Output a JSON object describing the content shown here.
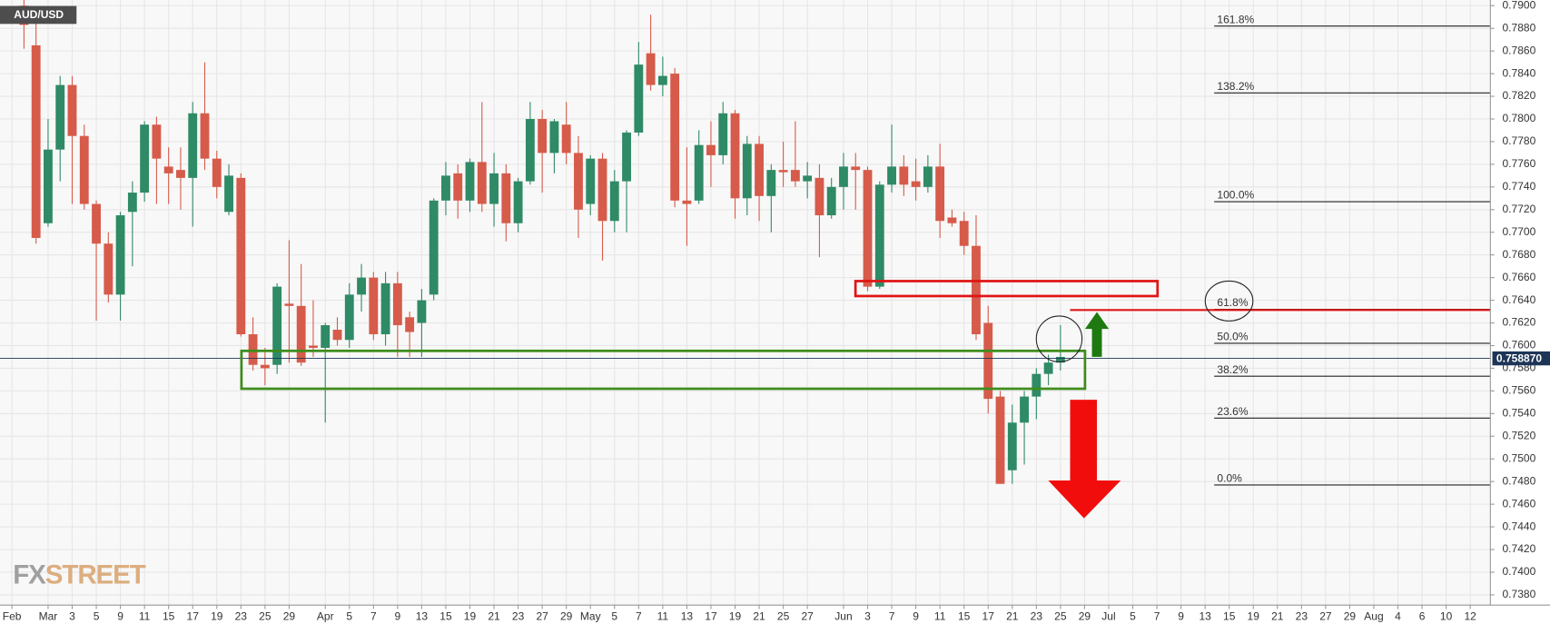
{
  "chart_data": {
    "type": "candlestick",
    "title": "AUD/USD",
    "watermark": [
      "FX",
      "STREET"
    ],
    "up_color": "#2f8a66",
    "down_color": "#d65b4a",
    "grid": true,
    "categories": [
      "Feb",
      null,
      null,
      "Mar",
      null,
      "3",
      null,
      "5",
      null,
      "9",
      null,
      "11",
      null,
      "15",
      null,
      "17",
      null,
      "19",
      null,
      "23",
      null,
      "25",
      null,
      "29",
      null,
      null,
      "Apr",
      null,
      "5",
      null,
      "7",
      null,
      "9",
      null,
      "13",
      null,
      "15",
      null,
      "19",
      null,
      "21",
      null,
      "23",
      null,
      "27",
      null,
      "29",
      null,
      "May",
      null,
      "5",
      null,
      "7",
      null,
      "11",
      null,
      "13",
      null,
      "17",
      null,
      "19",
      null,
      "21",
      null,
      "25",
      null,
      "27",
      null,
      null,
      "Jun",
      null,
      "3",
      null,
      "7",
      null,
      "9",
      null,
      "11",
      null,
      "15",
      null,
      "17",
      null,
      "21",
      null,
      "23",
      null,
      "25",
      null,
      "29",
      null,
      "Jul",
      null,
      "5",
      null,
      "7",
      null,
      "9",
      null,
      "13",
      null,
      "15",
      null,
      "19",
      null,
      "21",
      null,
      "23",
      null,
      "27",
      null,
      "29",
      null,
      "Aug",
      null,
      "4",
      null,
      "6",
      null,
      "10",
      null,
      "12"
    ],
    "open": [
      null,
      0.79,
      0.7865,
      0.7708,
      0.7773,
      0.783,
      0.7785,
      0.7725,
      0.769,
      0.7645,
      0.7718,
      0.7735,
      0.7795,
      0.7758,
      0.7755,
      0.7748,
      0.7805,
      0.7765,
      0.7718,
      0.7748,
      0.761,
      0.7583,
      0.7583,
      0.7637,
      0.7635,
      0.76,
      0.7598,
      0.7614,
      0.7605,
      0.7645,
      0.766,
      0.761,
      0.7655,
      0.7625,
      0.762,
      0.7645,
      0.7728,
      0.7752,
      0.7728,
      0.7762,
      0.7725,
      0.7752,
      0.7708,
      0.7745,
      0.78,
      0.777,
      0.7795,
      0.777,
      0.7725,
      0.7765,
      0.771,
      0.7745,
      0.7788,
      0.7858,
      0.783,
      0.784,
      0.7728,
      0.7728,
      0.7777,
      0.7768,
      0.7805,
      0.773,
      0.7778,
      0.7732,
      0.7755,
      0.7755,
      0.7745,
      0.7748,
      0.7715,
      0.774,
      0.7758,
      0.7755,
      0.7652,
      0.7742,
      0.7758,
      0.7745,
      0.774,
      0.7758,
      0.7713,
      0.771,
      0.7688,
      0.762,
      0.7555,
      0.749,
      0.7532,
      0.7555,
      0.7575,
      0.7585,
      null,
      null,
      null,
      null,
      null,
      null,
      null,
      null,
      null,
      null,
      null,
      null,
      null,
      null,
      null,
      null,
      null,
      null,
      null,
      null,
      null,
      null,
      null,
      null,
      null,
      null,
      null,
      null,
      null,
      null,
      null,
      null,
      null,
      null
    ],
    "high": [
      null,
      0.7905,
      0.7885,
      0.78,
      0.7838,
      0.7838,
      0.7795,
      0.7728,
      0.77,
      0.7718,
      0.7745,
      0.7798,
      0.7802,
      0.7775,
      0.7775,
      0.7815,
      0.785,
      0.7772,
      0.776,
      0.7752,
      0.7625,
      0.7598,
      0.7655,
      0.7693,
      0.7672,
      0.764,
      0.762,
      0.7625,
      0.7655,
      0.7672,
      0.7665,
      0.7665,
      0.7665,
      0.763,
      0.765,
      0.773,
      0.7762,
      0.776,
      0.7765,
      0.7815,
      0.777,
      0.776,
      0.7748,
      0.7815,
      0.7808,
      0.78,
      0.7815,
      0.7785,
      0.7768,
      0.777,
      0.7755,
      0.779,
      0.7868,
      0.7892,
      0.7855,
      0.7845,
      0.7775,
      0.779,
      0.7798,
      0.7815,
      0.7808,
      0.7785,
      0.7785,
      0.776,
      0.778,
      0.7798,
      0.7762,
      0.776,
      0.7748,
      0.777,
      0.777,
      0.7758,
      0.7745,
      0.7795,
      0.7768,
      0.7765,
      0.7768,
      0.7778,
      0.772,
      0.7718,
      0.7715,
      0.7635,
      0.756,
      0.7548,
      0.756,
      0.758,
      0.7592,
      0.7618,
      null,
      null,
      null,
      null,
      null,
      null,
      null,
      null,
      null,
      null,
      null,
      null,
      null,
      null,
      null,
      null,
      null,
      null,
      null,
      null,
      null,
      null,
      null,
      null,
      null,
      null,
      null,
      null,
      null,
      null,
      null,
      null,
      null,
      null
    ],
    "low": [
      null,
      0.7862,
      0.769,
      0.7705,
      0.7745,
      0.7725,
      0.772,
      0.7622,
      0.7638,
      0.7622,
      0.767,
      0.7727,
      0.7725,
      0.7725,
      0.772,
      0.7705,
      0.7755,
      0.773,
      0.7715,
      0.7608,
      0.7578,
      0.7565,
      0.7575,
      0.7585,
      0.7582,
      0.759,
      0.7532,
      0.76,
      0.7598,
      0.763,
      0.7605,
      0.76,
      0.759,
      0.759,
      0.759,
      0.764,
      0.7715,
      0.7712,
      0.7718,
      0.7718,
      0.7705,
      0.7692,
      0.77,
      0.7742,
      0.7735,
      0.7752,
      0.776,
      0.7695,
      0.7715,
      0.7675,
      0.77,
      0.77,
      0.7785,
      0.7825,
      0.782,
      0.7722,
      0.7688,
      0.7725,
      0.774,
      0.776,
      0.7712,
      0.7715,
      0.771,
      0.77,
      0.774,
      0.774,
      0.773,
      0.7678,
      0.7712,
      0.772,
      0.772,
      0.7648,
      0.765,
      0.7735,
      0.7732,
      0.7728,
      0.7735,
      0.7695,
      0.7705,
      0.768,
      0.7605,
      0.754,
      0.7478,
      0.7478,
      0.7495,
      0.7535,
      0.7565,
      0.7578,
      null,
      null,
      null,
      null,
      null,
      null,
      null,
      null,
      null,
      null,
      null,
      null,
      null,
      null,
      null,
      null,
      null,
      null,
      null,
      null,
      null,
      null,
      null,
      null,
      null,
      null,
      null,
      null,
      null,
      null,
      null,
      null,
      null,
      null
    ],
    "close": [
      null,
      0.7883,
      0.7695,
      0.7773,
      0.783,
      0.7785,
      0.7725,
      0.769,
      0.7645,
      0.7715,
      0.7735,
      0.7795,
      0.7765,
      0.7752,
      0.7748,
      0.7805,
      0.7765,
      0.774,
      0.775,
      0.761,
      0.7583,
      0.758,
      0.7652,
      0.7635,
      0.7585,
      0.7598,
      0.7618,
      0.7605,
      0.7645,
      0.766,
      0.761,
      0.7655,
      0.7618,
      0.7612,
      0.764,
      0.7728,
      0.775,
      0.7728,
      0.7762,
      0.7725,
      0.7752,
      0.7708,
      0.7745,
      0.78,
      0.777,
      0.7798,
      0.777,
      0.772,
      0.7765,
      0.771,
      0.7745,
      0.7788,
      0.7848,
      0.783,
      0.7838,
      0.7728,
      0.7725,
      0.7777,
      0.7768,
      0.7805,
      0.773,
      0.7778,
      0.7732,
      0.7755,
      0.7753,
      0.7745,
      0.775,
      0.7715,
      0.774,
      0.7758,
      0.7755,
      0.7652,
      0.7742,
      0.7758,
      0.7742,
      0.774,
      0.7758,
      0.771,
      0.7708,
      0.7688,
      0.761,
      0.7553,
      0.7478,
      0.7532,
      0.7555,
      0.7575,
      0.7585,
      0.759,
      null,
      null,
      null,
      null,
      null,
      null,
      null,
      null,
      null,
      null,
      null,
      null,
      null,
      null,
      null,
      null,
      null,
      null,
      null,
      null,
      null,
      null,
      null,
      null,
      null,
      null,
      null,
      null,
      null,
      null,
      null,
      null,
      null,
      null
    ],
    "ylim": [
      0.7371,
      0.7905
    ],
    "yticks": [
      {
        "value": 0.738,
        "label": "0.7380"
      },
      {
        "value": 0.74,
        "label": "0.7400"
      },
      {
        "value": 0.742,
        "label": "0.7420"
      },
      {
        "value": 0.744,
        "label": "0.7440"
      },
      {
        "value": 0.746,
        "label": "0.7460"
      },
      {
        "value": 0.748,
        "label": "0.7480"
      },
      {
        "value": 0.75,
        "label": "0.7500"
      },
      {
        "value": 0.752,
        "label": "0.7520"
      },
      {
        "value": 0.754,
        "label": "0.7540"
      },
      {
        "value": 0.756,
        "label": "0.7560"
      },
      {
        "value": 0.758,
        "label": "0.7580"
      },
      {
        "value": 0.76,
        "label": "0.7600"
      },
      {
        "value": 0.762,
        "label": "0.7620"
      },
      {
        "value": 0.764,
        "label": "0.7640"
      },
      {
        "value": 0.766,
        "label": "0.7660"
      },
      {
        "value": 0.768,
        "label": "0.7680"
      },
      {
        "value": 0.77,
        "label": "0.7700"
      },
      {
        "value": 0.772,
        "label": "0.7720"
      },
      {
        "value": 0.774,
        "label": "0.7740"
      },
      {
        "value": 0.776,
        "label": "0.7760"
      },
      {
        "value": 0.778,
        "label": "0.7780"
      },
      {
        "value": 0.78,
        "label": "0.7800"
      },
      {
        "value": 0.782,
        "label": "0.7820"
      },
      {
        "value": 0.784,
        "label": "0.7840"
      },
      {
        "value": 0.786,
        "label": "0.7860"
      },
      {
        "value": 0.788,
        "label": "0.7880"
      },
      {
        "value": 0.79,
        "label": "0.7900"
      }
    ],
    "last_price": {
      "value": 0.75887,
      "label": "0.758870"
    },
    "fib_levels": [
      {
        "label": "161.8%",
        "value": 0.7882
      },
      {
        "label": "138.2%",
        "value": 0.7823
      },
      {
        "label": "100.0%",
        "value": 0.7727
      },
      {
        "label": "61.8%",
        "value": 0.7632
      },
      {
        "label": "50.0%",
        "value": 0.7602
      },
      {
        "label": "38.2%",
        "value": 0.7573
      },
      {
        "label": "23.6%",
        "value": 0.7536
      },
      {
        "label": "0.0%",
        "value": 0.7477
      }
    ]
  }
}
